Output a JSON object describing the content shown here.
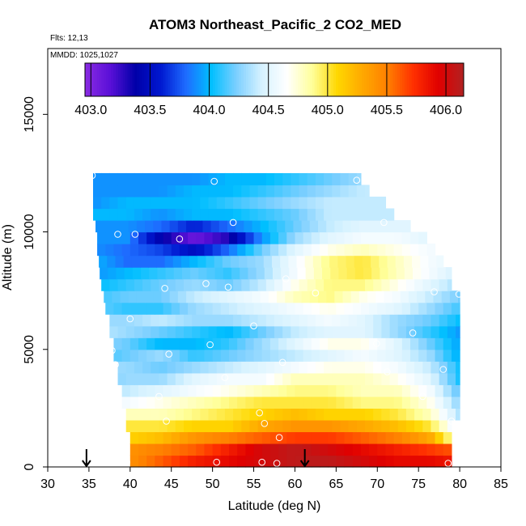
{
  "chart_data": {
    "type": "heatmap",
    "title": "ATOM3 Northeast_Pacific_2 CO2_MED",
    "annotations": [
      "Flts: 12,13",
      "MMDD: 1025,1027"
    ],
    "xlabel": "Latitude (deg N)",
    "ylabel": "Altitude (m)",
    "xlim": [
      30,
      85
    ],
    "ylim": [
      0,
      17800
    ],
    "x_ticks": [
      "30",
      "35",
      "40",
      "45",
      "50",
      "55",
      "60",
      "65",
      "70",
      "75",
      "80",
      "85"
    ],
    "y_ticks": [
      "0",
      "5000",
      "10000",
      "15000"
    ],
    "colorbar": {
      "ticks": [
        "403.0",
        "403.5",
        "404.0",
        "404.5",
        "405.0",
        "405.5",
        "406.0"
      ],
      "range": [
        402.95,
        406.15
      ],
      "colors": [
        "#8a2be2",
        "#5a10d8",
        "#0000a8",
        "#0018d0",
        "#1e6cff",
        "#00bfff",
        "#7ccfff",
        "#d6f2ff",
        "#ffffff",
        "#ffff9a",
        "#ffd700",
        "#ffa800",
        "#ff7f00",
        "#ff3000",
        "#e00000",
        "#b22222"
      ]
    },
    "arrows_lat": [
      34.7,
      61.2
    ],
    "grid": {
      "lat_start": 35.5,
      "lat_step": 1.0,
      "ncols": 45,
      "alt_start": 0,
      "alt_step": 500,
      "nrows": 25,
      "ncols_rows": [
        [
          40,
          79
        ],
        [
          40,
          79
        ],
        [
          40,
          79
        ],
        [
          39.5,
          79
        ],
        [
          39.5,
          80
        ],
        [
          39,
          80
        ],
        [
          39,
          80
        ],
        [
          38.5,
          80
        ],
        [
          38.5,
          80
        ],
        [
          38,
          80
        ],
        [
          38,
          80
        ],
        [
          37.5,
          80
        ],
        [
          37.5,
          80
        ],
        [
          37,
          80
        ],
        [
          36.8,
          80
        ],
        [
          36.5,
          79
        ],
        [
          36.3,
          79
        ],
        [
          36.2,
          78
        ],
        [
          36,
          77
        ],
        [
          36,
          76
        ],
        [
          35.8,
          74
        ],
        [
          35.5,
          72
        ],
        [
          35.5,
          71
        ],
        [
          35.5,
          69
        ],
        [
          35.5,
          68
        ]
      ],
      "row_values": [
        [
          405.0,
          405.4,
          405.6,
          405.8,
          405.9,
          406.0,
          406.1,
          406.1,
          406.0,
          405.9,
          405.9,
          405.8
        ],
        [
          405.2,
          405.4,
          405.5,
          405.6,
          405.8,
          406.0,
          406.1,
          406.0,
          405.9,
          405.8,
          405.7,
          405.6
        ],
        [
          404.9,
          405.1,
          405.2,
          405.4,
          405.5,
          405.6,
          405.7,
          405.7,
          405.6,
          405.5,
          405.3,
          404.6
        ],
        [
          404.8,
          405.0,
          405.0,
          405.1,
          405.1,
          405.3,
          405.4,
          405.4,
          405.3,
          405.2,
          405.0,
          404.4
        ],
        [
          404.6,
          404.8,
          404.8,
          404.9,
          405.0,
          405.1,
          405.2,
          405.1,
          405.1,
          405.0,
          404.8,
          404.3
        ],
        [
          404.5,
          404.6,
          404.7,
          404.8,
          404.9,
          405.0,
          405.0,
          405.0,
          404.9,
          404.9,
          404.7,
          404.2
        ],
        [
          404.3,
          404.4,
          404.5,
          404.6,
          404.7,
          404.8,
          404.9,
          404.9,
          404.8,
          404.8,
          404.6,
          404.1
        ],
        [
          404.2,
          404.3,
          404.3,
          404.5,
          404.6,
          404.6,
          404.8,
          404.8,
          404.8,
          404.7,
          404.5,
          404.0
        ],
        [
          404.3,
          404.3,
          404.2,
          404.3,
          404.4,
          404.5,
          404.6,
          404.7,
          404.7,
          404.6,
          404.4,
          404.0
        ],
        [
          404.1,
          404.2,
          404.3,
          404.1,
          404.2,
          404.3,
          404.4,
          404.5,
          404.6,
          404.5,
          404.3,
          403.9
        ],
        [
          404.3,
          404.2,
          404.0,
          404.0,
          404.1,
          404.3,
          404.5,
          404.7,
          404.7,
          404.5,
          404.2,
          403.9
        ],
        [
          404.4,
          404.3,
          404.2,
          404.1,
          404.0,
          404.2,
          404.4,
          404.5,
          404.5,
          404.3,
          404.1,
          403.9
        ],
        [
          404.3,
          404.3,
          404.4,
          404.3,
          404.3,
          404.4,
          404.5,
          404.6,
          404.5,
          404.3,
          404.2,
          404.0
        ],
        [
          404.2,
          404.1,
          404.1,
          404.3,
          404.4,
          404.5,
          404.6,
          404.7,
          404.6,
          404.5,
          404.3,
          404.1
        ],
        [
          404.1,
          404.2,
          404.2,
          404.4,
          404.5,
          404.6,
          404.8,
          404.9,
          404.7,
          404.6,
          404.4,
          404.2
        ],
        [
          404.0,
          404.1,
          404.2,
          404.3,
          404.2,
          404.4,
          404.7,
          404.9,
          404.9,
          404.7,
          404.5,
          404.3
        ],
        [
          403.9,
          404.0,
          404.1,
          404.2,
          404.1,
          404.3,
          404.6,
          404.9,
          405.0,
          404.8,
          404.6,
          404.4
        ],
        [
          404.0,
          403.8,
          403.8,
          404.0,
          404.2,
          404.3,
          404.6,
          404.9,
          405.0,
          404.8,
          404.6,
          404.5
        ],
        [
          403.9,
          403.8,
          403.7,
          403.5,
          403.8,
          404.2,
          404.5,
          404.7,
          404.8,
          404.7,
          404.6,
          404.5
        ],
        [
          403.9,
          403.9,
          403.4,
          403.1,
          403.3,
          403.9,
          404.3,
          404.5,
          404.6,
          404.6,
          404.5,
          404.5
        ],
        [
          403.9,
          403.9,
          403.8,
          403.6,
          403.8,
          404.0,
          404.2,
          404.4,
          404.5,
          404.5,
          404.5,
          404.5
        ],
        [
          404.0,
          404.0,
          403.9,
          404.0,
          404.0,
          404.1,
          404.2,
          404.4,
          404.4,
          404.4,
          404.4,
          404.4
        ],
        [
          403.9,
          404.0,
          404.0,
          404.0,
          404.1,
          404.2,
          404.3,
          404.4,
          404.4,
          404.4,
          404.4,
          404.4
        ],
        [
          403.9,
          403.9,
          403.9,
          404.0,
          404.0,
          404.1,
          404.2,
          404.3,
          404.4,
          404.4,
          404.4,
          404.4
        ],
        [
          403.9,
          403.9,
          403.9,
          403.9,
          404.0,
          404.0,
          404.1,
          404.2,
          404.3,
          404.3,
          404.3,
          404.4
        ]
      ]
    },
    "sample_points": [
      {
        "lat": 35.4,
        "alt": 12400
      },
      {
        "lat": 50.2,
        "alt": 12150
      },
      {
        "lat": 67.5,
        "alt": 12200
      },
      {
        "lat": 38.5,
        "alt": 9900
      },
      {
        "lat": 40.6,
        "alt": 9900
      },
      {
        "lat": 46.0,
        "alt": 9700
      },
      {
        "lat": 52.5,
        "alt": 10400
      },
      {
        "lat": 70.8,
        "alt": 10400
      },
      {
        "lat": 58.9,
        "alt": 8000
      },
      {
        "lat": 44.2,
        "alt": 7600
      },
      {
        "lat": 49.2,
        "alt": 7800
      },
      {
        "lat": 51.9,
        "alt": 7650
      },
      {
        "lat": 62.5,
        "alt": 7400
      },
      {
        "lat": 76.9,
        "alt": 7450
      },
      {
        "lat": 79.9,
        "alt": 7350
      },
      {
        "lat": 40.0,
        "alt": 6300
      },
      {
        "lat": 55.0,
        "alt": 6000
      },
      {
        "lat": 49.7,
        "alt": 5200
      },
      {
        "lat": 74.3,
        "alt": 5700
      },
      {
        "lat": 37.8,
        "alt": 4950
      },
      {
        "lat": 44.7,
        "alt": 4800
      },
      {
        "lat": 38.2,
        "alt": 4350
      },
      {
        "lat": 58.5,
        "alt": 4450
      },
      {
        "lat": 69.9,
        "alt": 5250
      },
      {
        "lat": 71.2,
        "alt": 4050
      },
      {
        "lat": 78.0,
        "alt": 4150
      },
      {
        "lat": 51.5,
        "alt": 3800
      },
      {
        "lat": 43.5,
        "alt": 3000
      },
      {
        "lat": 75.5,
        "alt": 3000
      },
      {
        "lat": 55.7,
        "alt": 2300
      },
      {
        "lat": 44.4,
        "alt": 1950
      },
      {
        "lat": 56.3,
        "alt": 1850
      },
      {
        "lat": 79.0,
        "alt": 1950
      },
      {
        "lat": 58.1,
        "alt": 1250
      },
      {
        "lat": 39.6,
        "alt": 200
      },
      {
        "lat": 50.5,
        "alt": 200
      },
      {
        "lat": 56.0,
        "alt": 200
      },
      {
        "lat": 57.8,
        "alt": 150
      },
      {
        "lat": 78.6,
        "alt": 150
      }
    ]
  }
}
